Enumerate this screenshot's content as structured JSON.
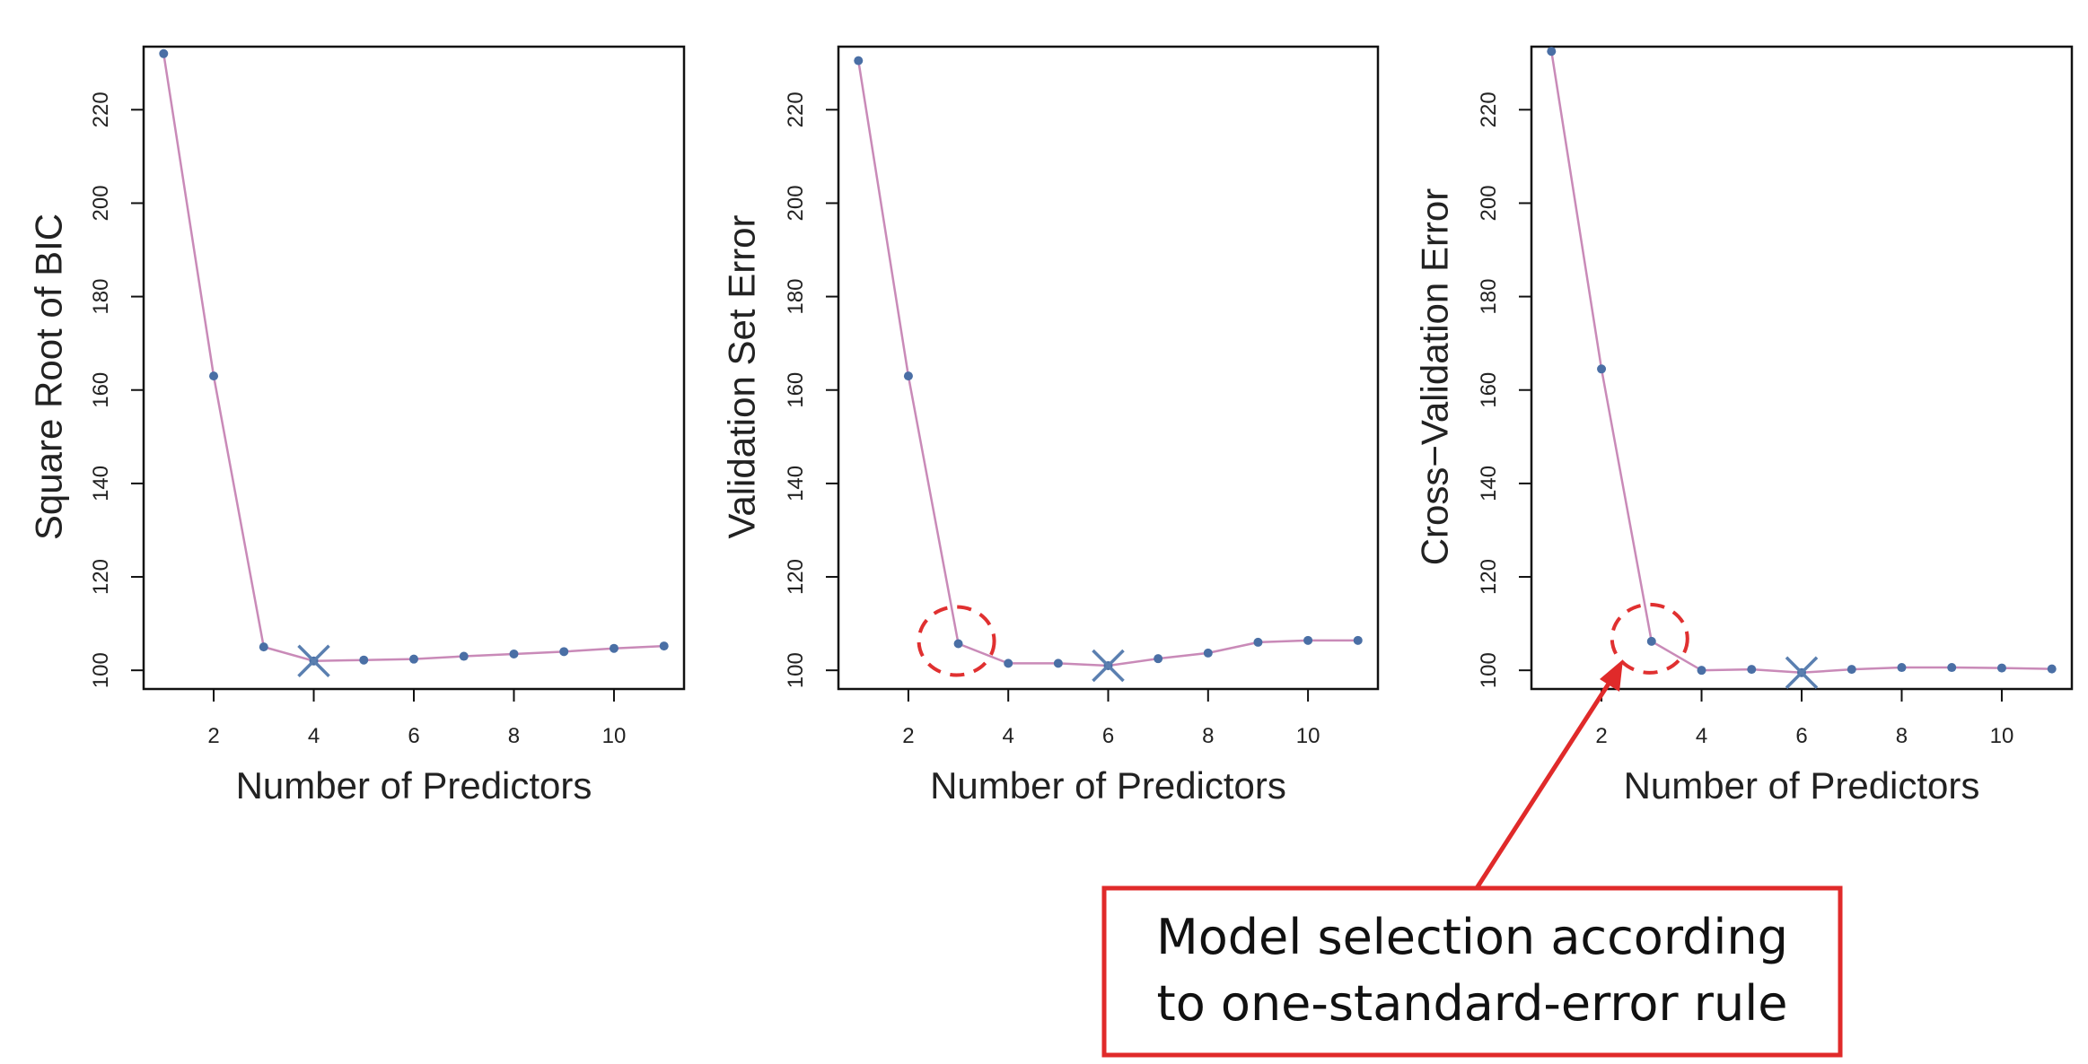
{
  "chart_data": [
    {
      "type": "line",
      "xlabel": "Number of Predictors",
      "ylabel": "Square Root of BIC",
      "xlim": [
        0.6,
        11.4
      ],
      "ylim": [
        96,
        233.5
      ],
      "xticks": [
        2,
        4,
        6,
        8,
        10
      ],
      "yticks": [
        100,
        120,
        140,
        160,
        180,
        200,
        220
      ],
      "x": [
        1,
        2,
        3,
        4,
        5,
        6,
        7,
        8,
        9,
        10,
        11
      ],
      "y": [
        232,
        163,
        105,
        102,
        102.2,
        102.4,
        103,
        103.5,
        104,
        104.7,
        105.2
      ],
      "selected": {
        "x": 4,
        "y": 102
      },
      "grid": false
    },
    {
      "type": "line",
      "xlabel": "Number of Predictors",
      "ylabel": "Validation Set Error",
      "xlim": [
        0.6,
        11.4
      ],
      "ylim": [
        96,
        233.5
      ],
      "xticks": [
        2,
        4,
        6,
        8,
        10
      ],
      "yticks": [
        100,
        120,
        140,
        160,
        180,
        200,
        220
      ],
      "x": [
        1,
        2,
        3,
        4,
        5,
        6,
        7,
        8,
        9,
        10,
        11
      ],
      "y": [
        230.5,
        163,
        105.7,
        101.5,
        101.5,
        101,
        102.5,
        103.7,
        106,
        106.4,
        106.4
      ],
      "selected": {
        "x": 6,
        "y": 101
      },
      "highlight": {
        "x": 3,
        "y": 105.7
      },
      "grid": false
    },
    {
      "type": "line",
      "xlabel": "Number of Predictors",
      "ylabel": "Cross−Validation Error",
      "xlim": [
        0.6,
        11.4
      ],
      "ylim": [
        96,
        233.5
      ],
      "xticks": [
        2,
        4,
        6,
        8,
        10
      ],
      "yticks": [
        100,
        120,
        140,
        160,
        180,
        200,
        220
      ],
      "x": [
        1,
        2,
        3,
        4,
        5,
        6,
        7,
        8,
        9,
        10,
        11
      ],
      "y": [
        232.5,
        164.5,
        106.2,
        100,
        100.2,
        99.5,
        100.2,
        100.6,
        100.6,
        100.5,
        100.3
      ],
      "selected": {
        "x": 6,
        "y": 99.5
      },
      "highlight": {
        "x": 3,
        "y": 106.2
      },
      "grid": false
    }
  ],
  "callout": {
    "line1": "Model selection according",
    "line2": "to one-standard-error rule"
  },
  "colors": {
    "line": "#c98ab8",
    "point": "#4a6fa5",
    "cross": "#5a7fb0",
    "highlight": "#e03030",
    "callout_border": "#e02a2a",
    "axis": "#111111"
  }
}
